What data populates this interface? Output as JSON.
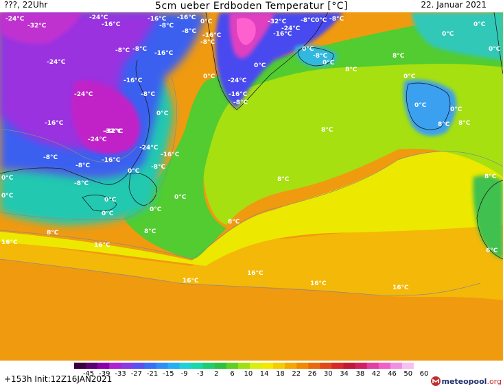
{
  "header": {
    "left": "???, 22Uhr",
    "title": "5cm ueber Erdboden Temperatur [°C]",
    "date": "22. Januar 2021"
  },
  "footer": {
    "run": "+153h  Init:12Z16JAN2021",
    "logo": "meteopool",
    "logo_suffix": ".org"
  },
  "colorbar": {
    "ticks": [
      "-45",
      "-39",
      "-33",
      "-27",
      "-21",
      "-15",
      "-9",
      "-3",
      "2",
      "6",
      "10",
      "14",
      "18",
      "22",
      "26",
      "30",
      "34",
      "38",
      "42",
      "46",
      "50",
      "60"
    ],
    "colors": [
      "#3a0040",
      "#5a0070",
      "#8a00a8",
      "#b020d0",
      "#8a3ae0",
      "#5a50f0",
      "#3a6ef5",
      "#2d8ef5",
      "#22b0f0",
      "#20d0d8",
      "#18d8a8",
      "#20cc70",
      "#30c040",
      "#60d020",
      "#a0e010",
      "#d8ee10",
      "#f4e800",
      "#f4cc00",
      "#f4a800",
      "#f08a00",
      "#e86a10",
      "#e04818",
      "#d82828",
      "#c01838",
      "#d02060",
      "#e040a0",
      "#f060c8",
      "#f090e0",
      "#f8c0f0",
      "#ffffff"
    ]
  },
  "labels": [
    {
      "text": "-24°C"
    },
    {
      "text": "-32°C"
    },
    {
      "text": "-24°C"
    },
    {
      "text": "-16°C"
    },
    {
      "text": "-16°C"
    },
    {
      "text": "-16°C"
    },
    {
      "text": "-8°C"
    },
    {
      "text": "-8°C"
    },
    {
      "text": "0°C"
    },
    {
      "text": "-16°C"
    },
    {
      "text": "-8°C"
    },
    {
      "text": "-32°C"
    },
    {
      "text": "-24°C"
    },
    {
      "text": "-16°C"
    },
    {
      "text": "0°C"
    },
    {
      "text": "-8°C"
    },
    {
      "text": "0°C"
    },
    {
      "text": "-8°C"
    },
    {
      "text": "-16°C"
    },
    {
      "text": "-8°C"
    },
    {
      "text": "-24°C"
    },
    {
      "text": "-24°C"
    },
    {
      "text": "-16°C"
    },
    {
      "text": "-8°C"
    },
    {
      "text": "0°C"
    },
    {
      "text": "-32°C"
    },
    {
      "text": "0°C"
    },
    {
      "text": "-24°C"
    },
    {
      "text": "-16°C"
    },
    {
      "text": "-8°C"
    },
    {
      "text": "0°C"
    },
    {
      "text": "-8°C"
    },
    {
      "text": "0°C"
    },
    {
      "text": "-8°C"
    },
    {
      "text": "0°C"
    },
    {
      "text": "8°C"
    },
    {
      "text": "8°C"
    },
    {
      "text": "0°C"
    },
    {
      "text": "8°C"
    },
    {
      "text": "-16°C"
    },
    {
      "text": "-32°C"
    },
    {
      "text": "-24°C"
    },
    {
      "text": "-24°C"
    },
    {
      "text": "-16°C"
    },
    {
      "text": "-8°C"
    },
    {
      "text": "-16°C"
    },
    {
      "text": "-8°C"
    },
    {
      "text": "0°C"
    },
    {
      "text": "-8°C"
    },
    {
      "text": "0°C"
    },
    {
      "text": "0°C"
    },
    {
      "text": "-8°C"
    },
    {
      "text": "0°C"
    },
    {
      "text": "0°C"
    },
    {
      "text": "0°C"
    },
    {
      "text": "0°C"
    },
    {
      "text": "8°C"
    },
    {
      "text": "8°C"
    },
    {
      "text": "8°C"
    },
    {
      "text": "8°C"
    },
    {
      "text": "8°C"
    },
    {
      "text": "16°C"
    },
    {
      "text": "16°C"
    },
    {
      "text": "16°C"
    },
    {
      "text": "16°C"
    },
    {
      "text": "16°C"
    },
    {
      "text": "16°C"
    },
    {
      "text": "8°C"
    },
    {
      "text": "8°C"
    },
    {
      "text": "0°C"
    },
    {
      "text": "6°C"
    },
    {
      "text": "0°C"
    },
    {
      "text": "0°C"
    },
    {
      "text": "0°C"
    }
  ]
}
